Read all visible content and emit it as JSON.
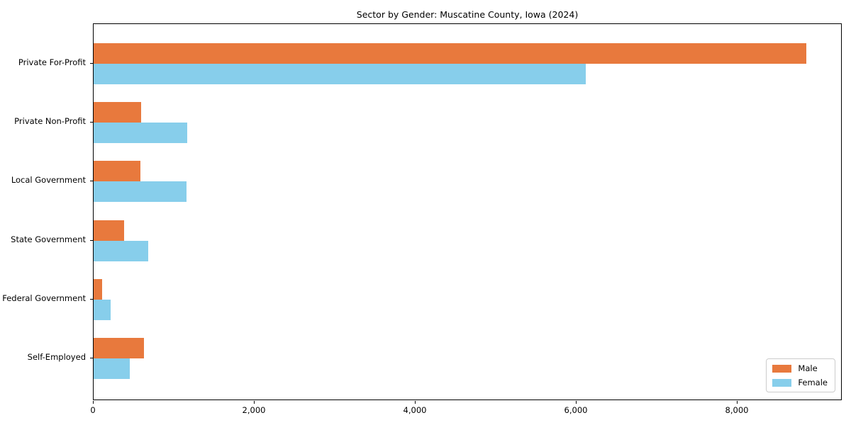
{
  "title": "Sector by Gender: Muscatine County, Iowa (2024)",
  "chart_data": {
    "type": "bar",
    "orientation": "horizontal",
    "title": "Sector by Gender: Muscatine County, Iowa (2024)",
    "xlabel": "",
    "ylabel": "",
    "categories": [
      "Private For-Profit",
      "Private Non-Profit",
      "Local Government",
      "State Government",
      "Federal Government",
      "Self-Employed"
    ],
    "series": [
      {
        "name": "Male",
        "color": "#E8793D",
        "values": [
          8855,
          590,
          580,
          380,
          105,
          625
        ]
      },
      {
        "name": "Female",
        "color": "#87CEEB",
        "values": [
          6110,
          1165,
          1150,
          680,
          210,
          450
        ]
      }
    ],
    "xlim": [
      0,
      9300
    ],
    "xticks": [
      0,
      2000,
      4000,
      6000,
      8000
    ],
    "xtick_labels": [
      "0",
      "2,000",
      "4,000",
      "6,000",
      "8,000"
    ],
    "grid": false,
    "legend_position": "lower right"
  }
}
